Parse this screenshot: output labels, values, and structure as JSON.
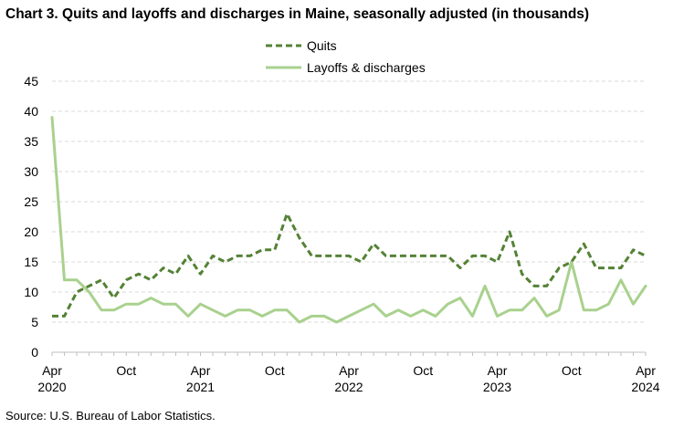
{
  "title": "Chart 3. Quits and layoffs and discharges in Maine, seasonally adjusted (in thousands)",
  "source": "Source: U.S. Bureau of Labor Statistics.",
  "chart_data": {
    "type": "line",
    "title": "Chart 3. Quits and layoffs and discharges in Maine, seasonally adjusted (in thousands)",
    "xlabel": "",
    "ylabel": "",
    "ylim": [
      0,
      45
    ],
    "yticks": [
      0,
      5,
      10,
      15,
      20,
      25,
      30,
      35,
      40,
      45
    ],
    "grid": "horizontal dashed",
    "legend": "top-center",
    "x": [
      "Apr 2020",
      "May 2020",
      "Jun 2020",
      "Jul 2020",
      "Aug 2020",
      "Sep 2020",
      "Oct 2020",
      "Nov 2020",
      "Dec 2020",
      "Jan 2021",
      "Feb 2021",
      "Mar 2021",
      "Apr 2021",
      "May 2021",
      "Jun 2021",
      "Jul 2021",
      "Aug 2021",
      "Sep 2021",
      "Oct 2021",
      "Nov 2021",
      "Dec 2021",
      "Jan 2022",
      "Feb 2022",
      "Mar 2022",
      "Apr 2022",
      "May 2022",
      "Jun 2022",
      "Jul 2022",
      "Aug 2022",
      "Sep 2022",
      "Oct 2022",
      "Nov 2022",
      "Dec 2022",
      "Jan 2023",
      "Feb 2023",
      "Mar 2023",
      "Apr 2023",
      "May 2023",
      "Jun 2023",
      "Jul 2023",
      "Aug 2023",
      "Sep 2023",
      "Oct 2023",
      "Nov 2023",
      "Dec 2023",
      "Jan 2024",
      "Feb 2024",
      "Mar 2024",
      "Apr 2024"
    ],
    "x_tick_labels": [
      {
        "month": "Apr",
        "year": "2020",
        "index": 0
      },
      {
        "month": "Oct",
        "year": "",
        "index": 6
      },
      {
        "month": "Apr",
        "year": "2021",
        "index": 12
      },
      {
        "month": "Oct",
        "year": "",
        "index": 18
      },
      {
        "month": "Apr",
        "year": "2022",
        "index": 24
      },
      {
        "month": "Oct",
        "year": "",
        "index": 30
      },
      {
        "month": "Apr",
        "year": "2023",
        "index": 36
      },
      {
        "month": "Oct",
        "year": "",
        "index": 42
      },
      {
        "month": "Apr",
        "year": "2024",
        "index": 48
      }
    ],
    "series": [
      {
        "name": "Quits",
        "color": "#548235",
        "style": "dashed",
        "values": [
          6,
          6,
          10,
          11,
          12,
          9,
          12,
          13,
          12,
          14,
          13,
          16,
          13,
          16,
          15,
          16,
          16,
          17,
          17,
          23,
          19,
          16,
          16,
          16,
          16,
          15,
          18,
          16,
          16,
          16,
          16,
          16,
          16,
          14,
          16,
          16,
          15,
          20,
          13,
          11,
          11,
          14,
          15,
          18,
          14,
          14,
          14,
          17,
          16
        ]
      },
      {
        "name": "Layoffs & discharges",
        "color": "#a9d18e",
        "style": "solid",
        "values": [
          39,
          12,
          12,
          10,
          7,
          7,
          8,
          8,
          9,
          8,
          8,
          6,
          8,
          7,
          6,
          7,
          7,
          6,
          7,
          7,
          5,
          6,
          6,
          5,
          6,
          7,
          8,
          6,
          7,
          6,
          7,
          6,
          8,
          9,
          6,
          11,
          6,
          7,
          7,
          9,
          6,
          7,
          15,
          7,
          7,
          8,
          12,
          8,
          11
        ]
      }
    ]
  }
}
